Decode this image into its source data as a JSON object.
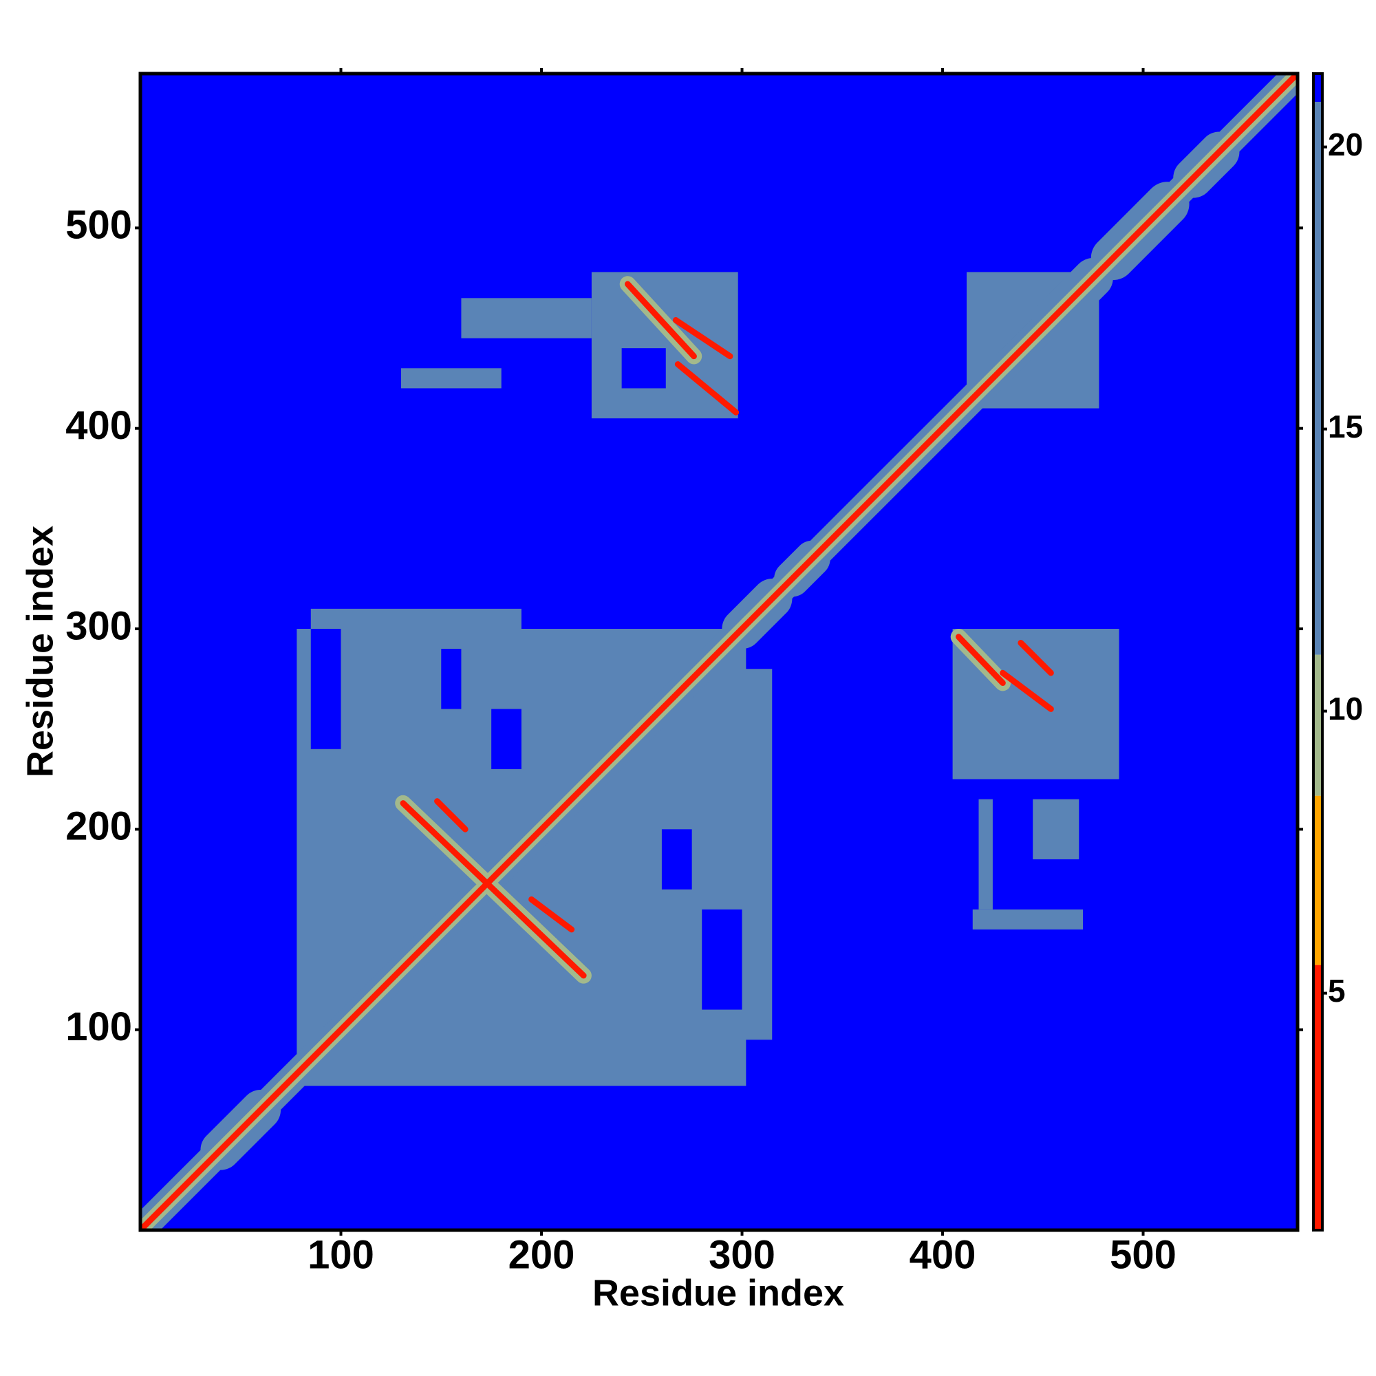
{
  "chart_data": {
    "type": "heatmap",
    "xlabel": "Residue index",
    "ylabel": "Residue index",
    "xlim": [
      0,
      577
    ],
    "ylim": [
      0,
      577
    ],
    "xticks": [
      100,
      200,
      300,
      400,
      500
    ],
    "yticks": [
      100,
      200,
      300,
      400,
      500
    ],
    "background_value": 21.3,
    "color_bands": [
      {
        "min": 0.8,
        "max": 5.5,
        "color": "#ff1a00"
      },
      {
        "min": 5.5,
        "max": 8.5,
        "color": "#ffa500"
      },
      {
        "min": 8.5,
        "max": 11,
        "color": "#a3b98c"
      },
      {
        "min": 11,
        "max": 20.8,
        "color": "#5a84b6"
      },
      {
        "min": 20.8,
        "max": 21.3,
        "color": "#0000ff"
      }
    ],
    "colorbar_lim": [
      0.8,
      21.3
    ],
    "colorbar_ticks": [
      5,
      10,
      15,
      20
    ],
    "regions": [
      {
        "x": [
          78,
          302
        ],
        "y": [
          72,
          300
        ],
        "value": 15
      },
      {
        "x": [
          85,
          190
        ],
        "y": [
          300,
          310
        ],
        "value": 15
      },
      {
        "x": [
          300,
          315
        ],
        "y": [
          95,
          280
        ],
        "value": 15
      },
      {
        "x": [
          225,
          298
        ],
        "y": [
          405,
          478
        ],
        "value": 15
      },
      {
        "x": [
          130,
          180
        ],
        "y": [
          420,
          430
        ],
        "value": 15
      },
      {
        "x": [
          160,
          225
        ],
        "y": [
          445,
          465
        ],
        "value": 15
      },
      {
        "x": [
          405,
          488
        ],
        "y": [
          225,
          300
        ],
        "value": 15
      },
      {
        "x": [
          412,
          478
        ],
        "y": [
          410,
          478
        ],
        "value": 15
      },
      {
        "x": [
          418,
          425
        ],
        "y": [
          160,
          215
        ],
        "value": 15
      },
      {
        "x": [
          445,
          468
        ],
        "y": [
          185,
          215
        ],
        "value": 15
      },
      {
        "x": [
          415,
          470
        ],
        "y": [
          150,
          160
        ],
        "value": 15
      },
      {
        "x": [
          150,
          160
        ],
        "y": [
          260,
          290
        ],
        "value": 21.3
      },
      {
        "x": [
          175,
          190
        ],
        "y": [
          230,
          260
        ],
        "value": 21.3
      },
      {
        "x": [
          260,
          275
        ],
        "y": [
          170,
          200
        ],
        "value": 21.3
      },
      {
        "x": [
          280,
          300
        ],
        "y": [
          110,
          160
        ],
        "value": 21.3
      },
      {
        "x": [
          85,
          100
        ],
        "y": [
          240,
          300
        ],
        "value": 21.3
      },
      {
        "x": [
          240,
          262
        ],
        "y": [
          420,
          440
        ],
        "value": 21.3
      }
    ],
    "streaks": [
      {
        "x": [
          1,
          577
        ],
        "y": [
          1,
          577
        ],
        "width": 14,
        "value": 15
      },
      {
        "x": [
          40,
          60
        ],
        "y": [
          40,
          60
        ],
        "width": 20,
        "value": 15
      },
      {
        "x": [
          300,
          315
        ],
        "y": [
          300,
          315
        ],
        "width": 20,
        "value": 15
      },
      {
        "x": [
          325,
          335
        ],
        "y": [
          325,
          335
        ],
        "width": 18,
        "value": 15
      },
      {
        "x": [
          455,
          475
        ],
        "y": [
          455,
          475
        ],
        "width": 20,
        "value": 15
      },
      {
        "x": [
          485,
          512
        ],
        "y": [
          485,
          512
        ],
        "width": 22,
        "value": 15
      },
      {
        "x": [
          525,
          538
        ],
        "y": [
          525,
          538
        ],
        "width": 20,
        "value": 15
      },
      {
        "x": [
          1,
          577
        ],
        "y": [
          1,
          577
        ],
        "width": 7,
        "value": 10
      },
      {
        "x": [
          131,
          221
        ],
        "y": [
          213,
          127
        ],
        "width": 8,
        "value": 10
      },
      {
        "x": [
          243,
          276
        ],
        "y": [
          472,
          436
        ],
        "width": 8,
        "value": 10
      },
      {
        "x": [
          408,
          430
        ],
        "y": [
          296,
          273
        ],
        "width": 8,
        "value": 10
      },
      {
        "x": [
          1,
          577
        ],
        "y": [
          1,
          577
        ],
        "width": 3,
        "value": 3
      },
      {
        "x": [
          131,
          221
        ],
        "y": [
          213,
          127
        ],
        "width": 3,
        "value": 5
      },
      {
        "x": [
          148,
          162
        ],
        "y": [
          214,
          200
        ],
        "width": 3,
        "value": 5
      },
      {
        "x": [
          195,
          215
        ],
        "y": [
          165,
          150
        ],
        "width": 3,
        "value": 5
      },
      {
        "x": [
          243,
          276
        ],
        "y": [
          472,
          436
        ],
        "width": 3,
        "value": 5
      },
      {
        "x": [
          267,
          294
        ],
        "y": [
          454,
          436
        ],
        "width": 3,
        "value": 5
      },
      {
        "x": [
          268,
          297
        ],
        "y": [
          432,
          408
        ],
        "width": 3,
        "value": 5
      },
      {
        "x": [
          408,
          430
        ],
        "y": [
          296,
          273
        ],
        "width": 3,
        "value": 5
      },
      {
        "x": [
          439,
          454
        ],
        "y": [
          293,
          278
        ],
        "width": 3,
        "value": 5
      },
      {
        "x": [
          430,
          454
        ],
        "y": [
          278,
          260
        ],
        "width": 3,
        "value": 5
      }
    ]
  }
}
